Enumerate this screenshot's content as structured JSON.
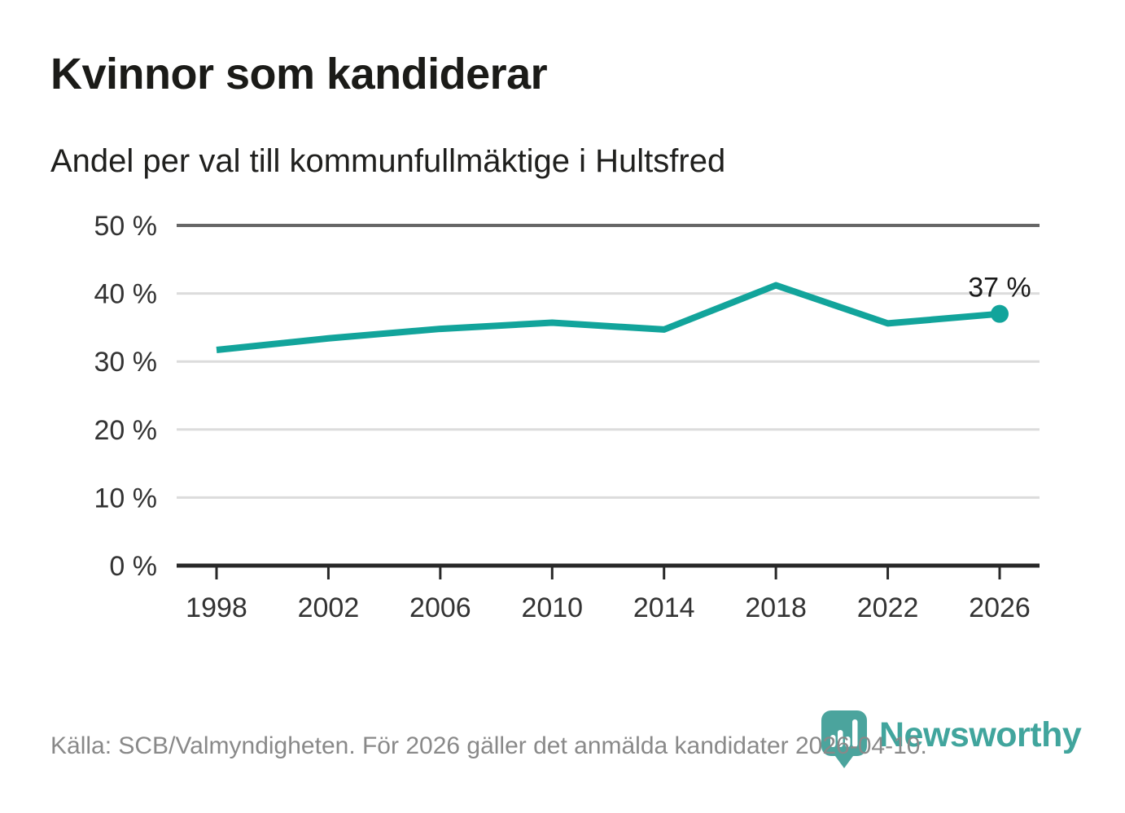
{
  "header": {
    "title": "Kvinnor som kandiderar",
    "subtitle": "Andel per val till kommunfullmäktige i Hultsfred"
  },
  "chart_data": {
    "type": "line",
    "title": "Kvinnor som kandiderar",
    "subtitle": "Andel per val till kommunfullmäktige i Hultsfred",
    "categories": [
      "1998",
      "2002",
      "2006",
      "2010",
      "2014",
      "2018",
      "2022",
      "2026"
    ],
    "values": [
      31.7,
      33.4,
      34.8,
      35.7,
      34.7,
      41.2,
      35.6,
      37
    ],
    "unit": "%",
    "ylim": [
      0,
      50
    ],
    "yticks": [
      0,
      10,
      20,
      30,
      40,
      50
    ],
    "ytick_labels": [
      "0 %",
      "10 %",
      "20 %",
      "30 %",
      "40 %",
      "50 %"
    ],
    "grid": "horizontal",
    "legend": "none",
    "line_color": "#12a49b",
    "marker_on_last_point": true,
    "last_value_label": "37 %"
  },
  "colors": {
    "accent_teal": "#12a49b",
    "logo_teal": "#4ba49d",
    "grid_light": "#dcdcdc",
    "grid_top": "#666666",
    "axis_dark": "#282828",
    "tick_text": "#333333",
    "annotation_text": "#1a1a1a"
  },
  "footer": {
    "source": "Källa: SCB/Valmyndigheten. För 2026 gäller det anmälda kandidater 2026-04-10.",
    "logo_text": "Newsworthy"
  }
}
